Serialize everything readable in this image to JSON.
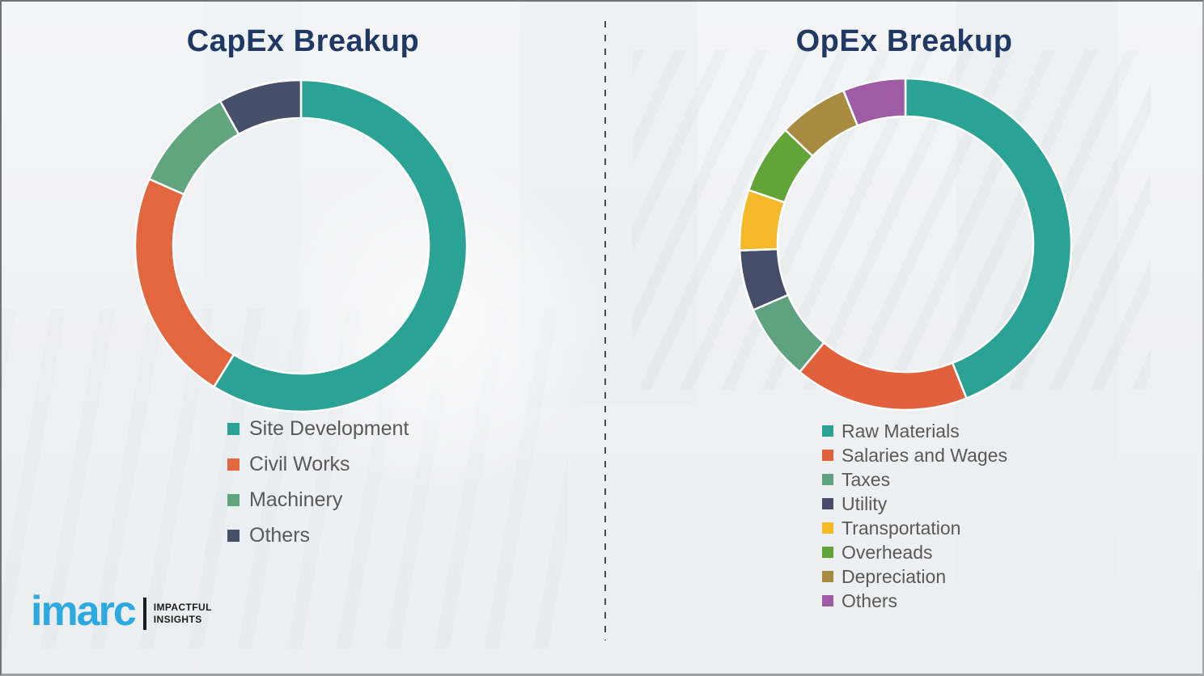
{
  "page": {
    "background_color": "#eff0f2",
    "divider_color": "#4c4c4c",
    "title_color": "#1f3864",
    "legend_text_color": "#595959"
  },
  "chart_data": [
    {
      "type": "pie",
      "subtype": "donut",
      "title": "CapEx Breakup",
      "labels": [
        "Site Development",
        "Civil Works",
        "Machinery",
        "Others"
      ],
      "values": [
        58.8,
        22.8,
        10.3,
        8.1
      ],
      "colors": [
        "#2aa395",
        "#e2663e",
        "#61a57e",
        "#474f69"
      ],
      "start_angle_deg": 0,
      "direction": "clockwise",
      "legend_position": "below-left",
      "value_note": "percent share estimated from arc angles; no data labels shown"
    },
    {
      "type": "pie",
      "subtype": "donut",
      "title": "OpEx Breakup",
      "labels": [
        "Raw Materials",
        "Salaries and Wages",
        "Taxes",
        "Utility",
        "Transportation",
        "Overheads",
        "Depreciation",
        "Others"
      ],
      "values": [
        44.0,
        17.0,
        7.5,
        5.9,
        5.9,
        6.8,
        6.8,
        6.1
      ],
      "colors": [
        "#2aa395",
        "#e0613c",
        "#5fa27f",
        "#454d68",
        "#f4b829",
        "#61a437",
        "#a68b41",
        "#9f5ba4"
      ],
      "start_angle_deg": 0,
      "direction": "clockwise",
      "legend_position": "below-left",
      "value_note": "percent share estimated from arc angles; no data labels shown"
    }
  ],
  "logo": {
    "brand": "imarc",
    "tagline_line1": "IMPACTFUL",
    "tagline_line2": "INSIGHTS",
    "brand_color": "#2ba9e0"
  }
}
